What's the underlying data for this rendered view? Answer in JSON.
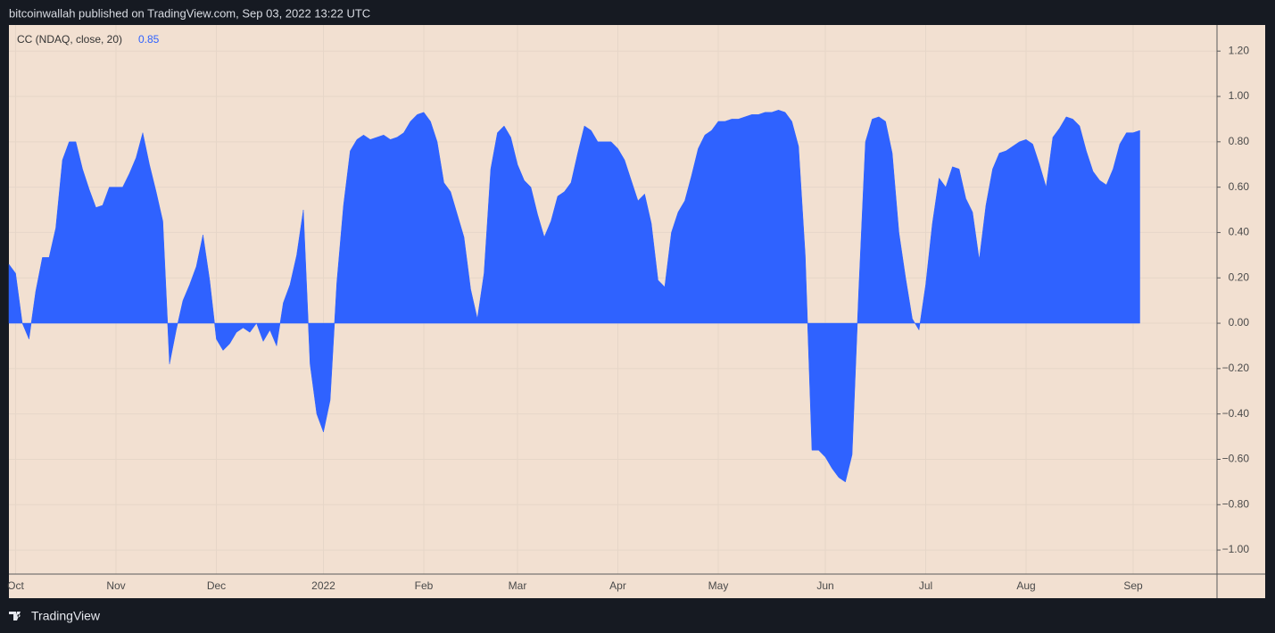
{
  "header": "bitcoinwallah published on TradingView.com, Sep 03, 2022 13:22 UTC",
  "footer": "TradingView",
  "chart_data": {
    "type": "area",
    "categories": [
      null,
      "Oct",
      null,
      null,
      null,
      null,
      null,
      null,
      null,
      null,
      null,
      null,
      null,
      null,
      null,
      null,
      "Nov",
      null,
      null,
      null,
      null,
      null,
      null,
      null,
      null,
      null,
      null,
      null,
      null,
      null,
      null,
      "Dec",
      null,
      null,
      null,
      null,
      null,
      null,
      null,
      null,
      null,
      null,
      null,
      null,
      null,
      null,
      null,
      "2022",
      null,
      null,
      null,
      null,
      null,
      null,
      null,
      null,
      null,
      null,
      null,
      null,
      null,
      null,
      "Feb",
      null,
      null,
      null,
      null,
      null,
      null,
      null,
      null,
      null,
      null,
      null,
      null,
      null,
      "Mar",
      null,
      null,
      null,
      null,
      null,
      null,
      null,
      null,
      null,
      null,
      null,
      null,
      null,
      null,
      "Apr",
      null,
      null,
      null,
      null,
      null,
      null,
      null,
      null,
      null,
      null,
      null,
      null,
      null,
      null,
      "May",
      null,
      null,
      null,
      null,
      null,
      null,
      null,
      null,
      null,
      null,
      null,
      null,
      null,
      null,
      null,
      "Jun",
      null,
      null,
      null,
      null,
      null,
      null,
      null,
      null,
      null,
      null,
      null,
      null,
      null,
      null,
      "Jul",
      null,
      null,
      null,
      null,
      null,
      null,
      null,
      null,
      null,
      null,
      null,
      null,
      null,
      null,
      "Aug",
      null,
      null,
      null,
      null,
      null,
      null,
      null,
      null,
      null,
      null,
      null,
      null,
      null,
      null,
      null,
      "Sep",
      null
    ],
    "series": [
      {
        "name": "CC (NDAQ, close, 20)",
        "color": "#2f62ff",
        "values": [
          0.26,
          0.22,
          0.0,
          -0.07,
          0.14,
          0.29,
          0.29,
          0.42,
          0.72,
          0.8,
          0.8,
          0.68,
          0.59,
          0.51,
          0.52,
          0.6,
          0.6,
          0.6,
          0.66,
          0.73,
          0.84,
          0.7,
          0.58,
          0.45,
          -0.18,
          -0.03,
          0.1,
          0.17,
          0.25,
          0.39,
          0.19,
          -0.07,
          -0.12,
          -0.09,
          -0.04,
          -0.02,
          -0.04,
          0.0,
          -0.08,
          -0.03,
          -0.1,
          0.09,
          0.17,
          0.3,
          0.5,
          -0.18,
          -0.4,
          -0.48,
          -0.34,
          0.18,
          0.52,
          0.76,
          0.81,
          0.83,
          0.81,
          0.82,
          0.83,
          0.81,
          0.82,
          0.84,
          0.89,
          0.92,
          0.93,
          0.89,
          0.8,
          0.62,
          0.58,
          0.48,
          0.38,
          0.15,
          0.02,
          0.22,
          0.68,
          0.84,
          0.87,
          0.82,
          0.7,
          0.63,
          0.6,
          0.48,
          0.38,
          0.45,
          0.56,
          0.58,
          0.62,
          0.75,
          0.87,
          0.85,
          0.8,
          0.8,
          0.8,
          0.77,
          0.72,
          0.63,
          0.54,
          0.57,
          0.44,
          0.19,
          0.16,
          0.4,
          0.49,
          0.54,
          0.65,
          0.77,
          0.83,
          0.85,
          0.89,
          0.89,
          0.9,
          0.9,
          0.91,
          0.92,
          0.92,
          0.93,
          0.93,
          0.94,
          0.93,
          0.89,
          0.78,
          0.3,
          -0.56,
          -0.56,
          -0.59,
          -0.64,
          -0.68,
          -0.7,
          -0.58,
          0.15,
          0.8,
          0.9,
          0.91,
          0.89,
          0.75,
          0.4,
          0.2,
          0.02,
          -0.03,
          0.17,
          0.44,
          0.64,
          0.6,
          0.69,
          0.68,
          0.55,
          0.49,
          0.28,
          0.52,
          0.68,
          0.75,
          0.76,
          0.78,
          0.8,
          0.81,
          0.79,
          0.7,
          0.6,
          0.82,
          0.86,
          0.91,
          0.9,
          0.87,
          0.76,
          0.67,
          0.63,
          0.61,
          0.68,
          0.79,
          0.84,
          0.84,
          0.85
        ]
      }
    ],
    "ylim": [
      -1.106,
      1.315
    ],
    "yticks": [
      {
        "value": -1,
        "label": "−1.00"
      },
      {
        "value": -0.8,
        "label": "−0.80"
      },
      {
        "value": -0.6,
        "label": "−0.60"
      },
      {
        "value": -0.4,
        "label": "−0.40"
      },
      {
        "value": -0.2,
        "label": "−0.20"
      },
      {
        "value": 0,
        "label": "0.00"
      },
      {
        "value": 0.2,
        "label": "0.20"
      },
      {
        "value": 0.4,
        "label": "0.40"
      },
      {
        "value": 0.6,
        "label": "0.60"
      },
      {
        "value": 0.8,
        "label": "0.80"
      },
      {
        "value": 1,
        "label": "1.00"
      },
      {
        "value": 1.2,
        "label": "1.20"
      }
    ],
    "grid": true
  }
}
